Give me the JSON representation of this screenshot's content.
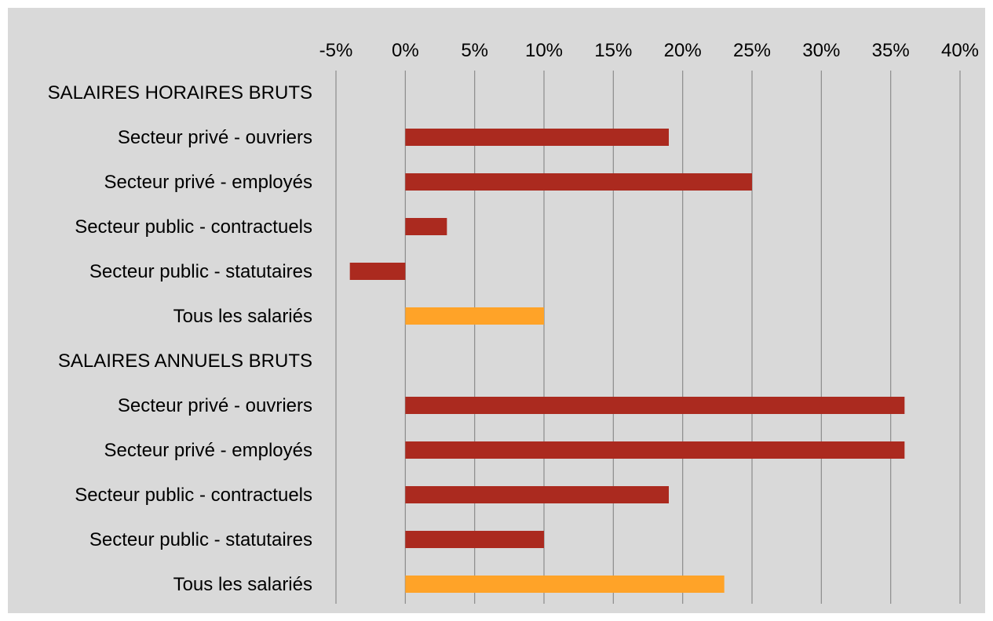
{
  "chart_data": {
    "type": "bar",
    "orientation": "horizontal",
    "title": "",
    "xlabel": "",
    "ylabel": "",
    "xlim": [
      -5,
      40
    ],
    "x_ticks": [
      -5,
      0,
      5,
      10,
      15,
      20,
      25,
      30,
      35,
      40
    ],
    "x_tick_labels": [
      "-5%",
      "0%",
      "5%",
      "10%",
      "15%",
      "20%",
      "25%",
      "30%",
      "35%",
      "40%"
    ],
    "x_axis_position": "top",
    "grid": true,
    "legend": "none",
    "colors": {
      "background": "#d9d9d9",
      "bar": "#ab2a1f",
      "bar_highlight": "#ffa328",
      "grid": "#8c8c8c"
    },
    "categories": [
      "SALAIRES HORAIRES BRUTS",
      "Secteur privé - ouvriers",
      "Secteur privé - employés",
      "Secteur public - contractuels",
      "Secteur public - statutaires",
      "Tous les salariés",
      "SALAIRES ANNUELS BRUTS",
      "Secteur privé - ouvriers",
      "Secteur privé - employés",
      "Secteur public - contractuels",
      "Secteur public - statutaires",
      "Tous les salariés"
    ],
    "values": [
      null,
      19,
      25,
      3,
      -4,
      10,
      null,
      36,
      36,
      19,
      10,
      23
    ],
    "highlight": [
      false,
      false,
      false,
      false,
      false,
      true,
      false,
      false,
      false,
      false,
      false,
      true
    ]
  }
}
